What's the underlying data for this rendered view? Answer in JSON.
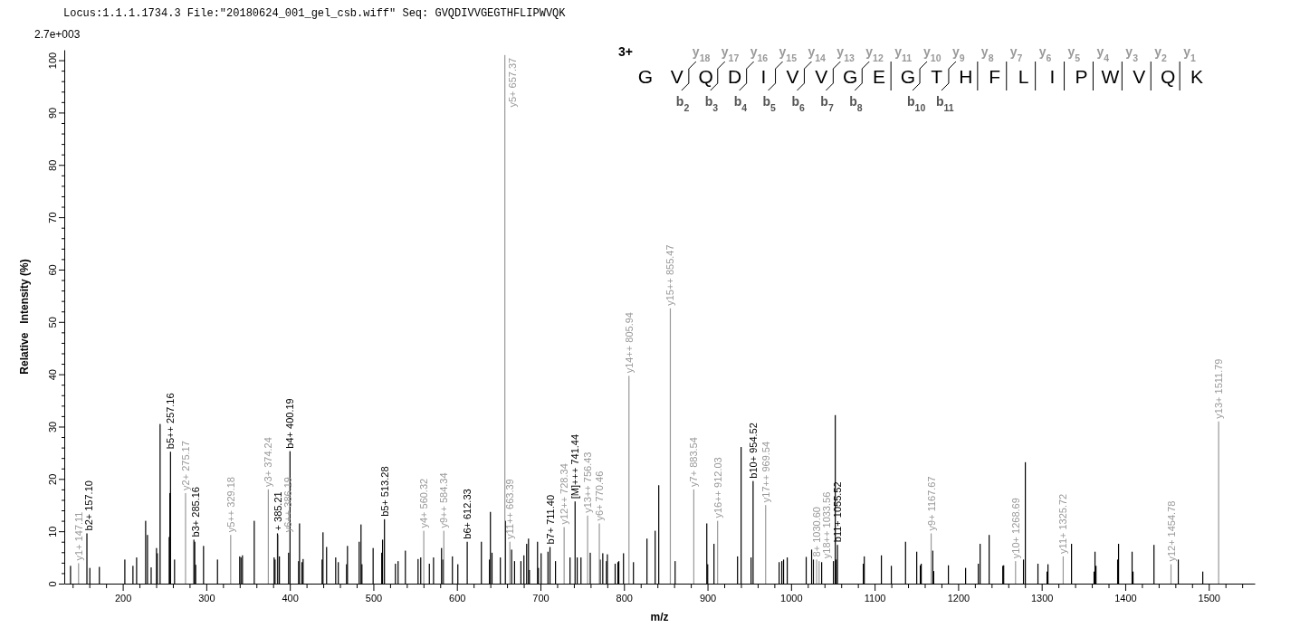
{
  "chart_data": {
    "type": "bar",
    "title": "Locus:1.1.1.1734.3 File:\"20180624_001_gel_csb.wiff\"   Seq: GVQDIVVGEGTHFLIPWVQK",
    "xlabel": "m/z",
    "ylabel": "Relative   Intensity (%)",
    "xlim": [
      130,
      1555
    ],
    "ylim": [
      0,
      102
    ],
    "xticks": [
      {
        "value": 140,
        "label": null
      },
      {
        "value": 160,
        "label": null
      },
      {
        "value": 180,
        "label": null
      },
      200,
      {
        "value": 220,
        "label": null
      },
      {
        "value": 240,
        "label": null
      },
      {
        "value": 260,
        "label": null
      },
      {
        "value": 280,
        "label": null
      },
      300,
      {
        "value": 320,
        "label": null
      },
      {
        "value": 340,
        "label": null
      },
      {
        "value": 360,
        "label": null
      },
      {
        "value": 380,
        "label": null
      },
      400,
      {
        "value": 420,
        "label": null
      },
      {
        "value": 440,
        "label": null
      },
      {
        "value": 460,
        "label": null
      },
      {
        "value": 480,
        "label": null
      },
      500,
      {
        "value": 520,
        "label": null
      },
      {
        "value": 540,
        "label": null
      },
      {
        "value": 560,
        "label": null
      },
      {
        "value": 580,
        "label": null
      },
      600,
      {
        "value": 620,
        "label": null
      },
      {
        "value": 640,
        "label": null
      },
      {
        "value": 660,
        "label": null
      },
      {
        "value": 680,
        "label": null
      },
      700,
      {
        "value": 720,
        "label": null
      },
      {
        "value": 740,
        "label": null
      },
      {
        "value": 760,
        "label": null
      },
      {
        "value": 780,
        "label": null
      },
      800,
      {
        "value": 820,
        "label": null
      },
      {
        "value": 840,
        "label": null
      },
      {
        "value": 860,
        "label": null
      },
      {
        "value": 880,
        "label": null
      },
      900,
      {
        "value": 920,
        "label": null
      },
      {
        "value": 940,
        "label": null
      },
      {
        "value": 960,
        "label": null
      },
      {
        "value": 980,
        "label": null
      },
      1000,
      {
        "value": 1020,
        "label": null
      },
      {
        "value": 1040,
        "label": null
      },
      {
        "value": 1060,
        "label": null
      },
      {
        "value": 1080,
        "label": null
      },
      1100,
      {
        "value": 1120,
        "label": null
      },
      {
        "value": 1140,
        "label": null
      },
      {
        "value": 1160,
        "label": null
      },
      {
        "value": 1180,
        "label": null
      },
      1200,
      {
        "value": 1220,
        "label": null
      },
      {
        "value": 1240,
        "label": null
      },
      {
        "value": 1260,
        "label": null
      },
      {
        "value": 1280,
        "label": null
      },
      1300,
      {
        "value": 1320,
        "label": null
      },
      {
        "value": 1340,
        "label": null
      },
      {
        "value": 1360,
        "label": null
      },
      {
        "value": 1380,
        "label": null
      },
      1400,
      {
        "value": 1420,
        "label": null
      },
      {
        "value": 1440,
        "label": null
      },
      {
        "value": 1460,
        "label": null
      },
      {
        "value": 1480,
        "label": null
      },
      1500,
      {
        "value": 1520,
        "label": null
      },
      {
        "value": 1540,
        "label": null
      }
    ],
    "yticks": [
      0,
      {
        "value": 2,
        "label": null
      },
      {
        "value": 4,
        "label": null
      },
      {
        "value": 6,
        "label": null
      },
      {
        "value": 8,
        "label": null
      },
      10,
      {
        "value": 12,
        "label": null
      },
      {
        "value": 14,
        "label": null
      },
      {
        "value": 16,
        "label": null
      },
      {
        "value": 18,
        "label": null
      },
      20,
      {
        "value": 22,
        "label": null
      },
      {
        "value": 24,
        "label": null
      },
      {
        "value": 26,
        "label": null
      },
      {
        "value": 28,
        "label": null
      },
      30,
      {
        "value": 32,
        "label": null
      },
      {
        "value": 34,
        "label": null
      },
      {
        "value": 36,
        "label": null
      },
      {
        "value": 38,
        "label": null
      },
      40,
      {
        "value": 42,
        "label": null
      },
      {
        "value": 44,
        "label": null
      },
      {
        "value": 46,
        "label": null
      },
      {
        "value": 48,
        "label": null
      },
      50,
      {
        "value": 52,
        "label": null
      },
      {
        "value": 54,
        "label": null
      },
      {
        "value": 56,
        "label": null
      },
      {
        "value": 58,
        "label": null
      },
      60,
      {
        "value": 62,
        "label": null
      },
      {
        "value": 64,
        "label": null
      },
      {
        "value": 66,
        "label": null
      },
      {
        "value": 68,
        "label": null
      },
      70,
      {
        "value": 72,
        "label": null
      },
      {
        "value": 74,
        "label": null
      },
      {
        "value": 76,
        "label": null
      },
      {
        "value": 78,
        "label": null
      },
      80,
      {
        "value": 82,
        "label": null
      },
      {
        "value": 84,
        "label": null
      },
      {
        "value": 86,
        "label": null
      },
      {
        "value": 88,
        "label": null
      },
      90,
      {
        "value": 92,
        "label": null
      },
      {
        "value": 94,
        "label": null
      },
      {
        "value": 96,
        "label": null
      },
      {
        "value": 98,
        "label": null
      },
      100
    ],
    "annotations": [
      "2.7e+003",
      "3+",
      "G V Q D I V V G E G T H F L I P W V Q K",
      "y$_{18}$",
      "y$_{17}$",
      "y$_{16}$",
      "y$_{15}$",
      "y$_{14}$",
      "y$_{13}$",
      "y$_{12}$",
      "y$_{11}$",
      "y$_{10}$",
      "y$_{9}$",
      "y$_{8}$",
      "y$_{7}$",
      "y$_{6}$",
      "y$_{5}$",
      "y$_{4}$",
      "y$_{3}$",
      "y$_{2}$",
      "y$_{1}$",
      "b$_{2}$",
      "b$_{3}$",
      "b$_{4}$",
      "b$_{5}$",
      "b$_{6}$",
      "b$_{7}$",
      "b$_{8}$",
      "b$_{10}$",
      "b$_{11}$",
      {
        "text": "b2+ 157.10",
        "x": 157.1,
        "y": 9.6
      },
      {
        "text": "b5++ 257.16",
        "x": 257.16,
        "y": 25.2
      },
      {
        "text": "b3+ 285.16",
        "x": 285.16,
        "y": 8.4
      },
      {
        "text": "+ 385.21",
        "x": 385.21,
        "y": 9.6
      },
      {
        "text": "b4+ 400.19",
        "x": 400.19,
        "y": 25.3
      },
      {
        "text": "b5+ 513.28",
        "x": 513.28,
        "y": 12.3
      },
      {
        "text": "b6+ 612.33",
        "x": 612.33,
        "y": 8.0
      },
      {
        "text": "b7+ 711.40",
        "x": 711.4,
        "y": 7.0
      },
      {
        "text": "[M]+++ 741.44",
        "x": 741.44,
        "y": 15.7
      },
      {
        "text": "b10+ 954.52",
        "x": 954.52,
        "y": 19.6
      },
      {
        "text": "b11+ 1055.52",
        "x": 1055.52,
        "y": 7.4
      },
      {
        "text": "y1+ 147.11",
        "x": 147.11,
        "y": 3.9
      },
      {
        "text": "y2+ 275.17",
        "x": 275.17,
        "y": 17.3
      },
      {
        "text": "y5++ 329.18",
        "x": 329.18,
        "y": 9.3
      },
      {
        "text": "y3+ 374.24",
        "x": 374.24,
        "y": 18.0
      },
      {
        "text": "y6++ 386.19",
        "x": 386.19,
        "y": 9.3
      },
      {
        "text": "y4+ 560.32",
        "x": 560.32,
        "y": 10.1
      },
      {
        "text": "y9++ 584.34",
        "x": 584.34,
        "y": 10.1
      },
      {
        "text": "y5+ 657.37",
        "x": 657.37,
        "y": 101
      },
      {
        "text": "y11++ 663.39",
        "x": 663.39,
        "y": 8.0
      },
      {
        "text": "y12++ 728.34",
        "x": 728.34,
        "y": 10.8
      },
      {
        "text": "y13++ 756.43",
        "x": 756.43,
        "y": 13.0
      },
      {
        "text": "y6+ 770.46",
        "x": 770.46,
        "y": 11.5
      },
      {
        "text": "y14++ 805.94",
        "x": 805.94,
        "y": 39.7
      },
      {
        "text": "y15++ 855.47",
        "x": 855.47,
        "y": 52.6
      },
      {
        "text": "y7+ 883.54",
        "x": 883.54,
        "y": 18.0
      },
      {
        "text": "y16++ 912.03",
        "x": 912.03,
        "y": 12.0
      },
      {
        "text": "y17++ 969.54",
        "x": 969.54,
        "y": 15.0
      },
      {
        "text": "8+ 1030.60",
        "x": 1030.6,
        "y": 4.6
      },
      {
        "text": "y18++ 1033.56",
        "x": 1033.56,
        "y": 4.3
      },
      {
        "text": "y9+ 1167.67",
        "x": 1167.67,
        "y": 9.6
      },
      {
        "text": "y10+ 1268.69",
        "x": 1268.69,
        "y": 4.3
      },
      {
        "text": "y11+ 1325.72",
        "x": 1325.72,
        "y": 5.2
      },
      {
        "text": "y12+ 1454.78",
        "x": 1454.78,
        "y": 3.7
      },
      {
        "text": "y13+ 1511.79",
        "x": 1511.79,
        "y": 31.0
      }
    ],
    "series": [
      {
        "color": "#000000",
        "x": [
          137.5,
          160.6,
          172,
          202.5,
          212.2,
          216.6,
          227.4,
          229.6,
          234,
          240.4,
          241.4,
          244.7,
          255.6,
          256.4,
          262,
          286.2,
          287.3,
          296.7,
          313.4,
          340,
          341.5,
          343.3,
          357.4,
          381.2,
          382.3,
          387.5,
          398.5,
          410.5,
          411.6,
          414.5,
          415.9,
          438.6,
          439.7,
          444,
          454.9,
          458,
          467.9,
          469,
          483,
          485.2,
          486.3,
          499.7,
          510,
          511,
          526.4,
          529.6,
          538.3,
          553.5,
          556.7,
          567,
          572,
          581.6,
          583.2,
          594.6,
          601.1,
          629.3,
          639,
          640.1,
          642,
          652,
          658.2,
          665.5,
          669,
          676.6,
          680.2,
          683.5,
          685.7,
          686.8,
          696.5,
          697.6,
          700.8,
          709,
          718,
          735.4,
          744,
          748.5,
          759.6,
          771.5,
          774.6,
          779,
          780.1,
          789.4,
          792.7,
          793.8,
          799.4,
          811.3,
          827.5,
          837.3,
          841.6,
          861.2,
          899.1,
          900.2,
          907.7,
          935.9,
          940.2,
          952.1,
          985.7,
          988.9,
          991,
          995.4,
          1018.1,
          1024.6,
          1026.7,
          1036.6,
          1050.7,
          1052.9,
          1054,
          1086.5,
          1087.6,
          1108.1,
          1120,
          1137,
          1150.4,
          1154.7,
          1155.8,
          1169.6,
          1170.7,
          1188.3,
          1208.9,
          1224.1,
          1226.3,
          1237.1,
          1253.4,
          1254.5,
          1278.2,
          1280.4,
          1295.5,
          1306.4,
          1307.5,
          1335.7,
          1362.7,
          1363.8,
          1365,
          1390.9,
          1392,
          1408.2,
          1409.3,
          1434.4,
          1463.5,
          1492.8
        ],
        "values": [
          3.4,
          3.0,
          3.2,
          4.6,
          3.4,
          5.0,
          12.0,
          9.3,
          3.1,
          6.8,
          5.8,
          30.5,
          8.9,
          17.3,
          4.6,
          8.0,
          3.6,
          7.2,
          4.6,
          5.2,
          5.0,
          5.4,
          12.0,
          5.0,
          4.6,
          5.2,
          5.9,
          4.3,
          11.5,
          4.1,
          4.7,
          4.6,
          9.8,
          7.0,
          5.0,
          4.1,
          3.7,
          7.2,
          8.0,
          11.3,
          3.7,
          6.8,
          5.9,
          8.4,
          3.8,
          4.3,
          6.3,
          4.7,
          5.0,
          3.8,
          5.0,
          6.8,
          4.6,
          5.2,
          3.7,
          8.0,
          4.6,
          13.7,
          5.9,
          5.0,
          12.0,
          6.5,
          4.3,
          4.3,
          5.4,
          7.6,
          8.6,
          2.6,
          8.0,
          3.0,
          5.8,
          6.1,
          4.3,
          5.0,
          5.0,
          5.0,
          5.9,
          4.6,
          5.8,
          4.3,
          5.6,
          3.8,
          4.1,
          4.3,
          5.8,
          4.1,
          8.6,
          10.1,
          18.8,
          4.3,
          11.5,
          3.7,
          7.6,
          5.2,
          26.1,
          5.0,
          4.1,
          4.3,
          4.6,
          5.0,
          5.1,
          6.5,
          4.6,
          4.1,
          4.3,
          32.2,
          4.6,
          3.8,
          5.2,
          5.4,
          3.4,
          8.0,
          6.1,
          3.5,
          3.8,
          6.3,
          2.4,
          3.5,
          3.0,
          3.8,
          7.6,
          9.3,
          3.4,
          3.5,
          4.6,
          23.2,
          3.8,
          2.3,
          3.7,
          7.6,
          2.3,
          6.1,
          3.4,
          4.6,
          7.6,
          6.1,
          2.3,
          7.4,
          4.6,
          2.3
        ]
      },
      {
        "color": "#000000",
        "x": [
          157.1,
          257.16,
          285.16,
          385.21,
          400.19,
          513.28,
          612.33,
          711.4,
          741.44,
          954.52,
          1055.52
        ],
        "values": [
          9.6,
          25.2,
          8.4,
          9.6,
          25.3,
          12.3,
          8.0,
          7.0,
          15.7,
          19.6,
          7.4
        ]
      },
      {
        "color": "#999999",
        "x": [
          147.11,
          275.17,
          329.18,
          374.24,
          386.19,
          560.32,
          584.34,
          657.37,
          663.39,
          728.34,
          756.43,
          770.46,
          805.94,
          855.47,
          883.54,
          912.03,
          969.54,
          1030.6,
          1033.56,
          1167.67,
          1268.69,
          1325.72,
          1454.78,
          1511.79
        ],
        "values": [
          3.9,
          17.3,
          9.3,
          18.0,
          9.3,
          10.1,
          10.1,
          101,
          8.0,
          10.8,
          13.0,
          11.5,
          39.7,
          52.6,
          18.0,
          12.0,
          15.0,
          4.6,
          4.3,
          9.6,
          4.3,
          5.2,
          3.7,
          31.0
        ]
      }
    ]
  }
}
